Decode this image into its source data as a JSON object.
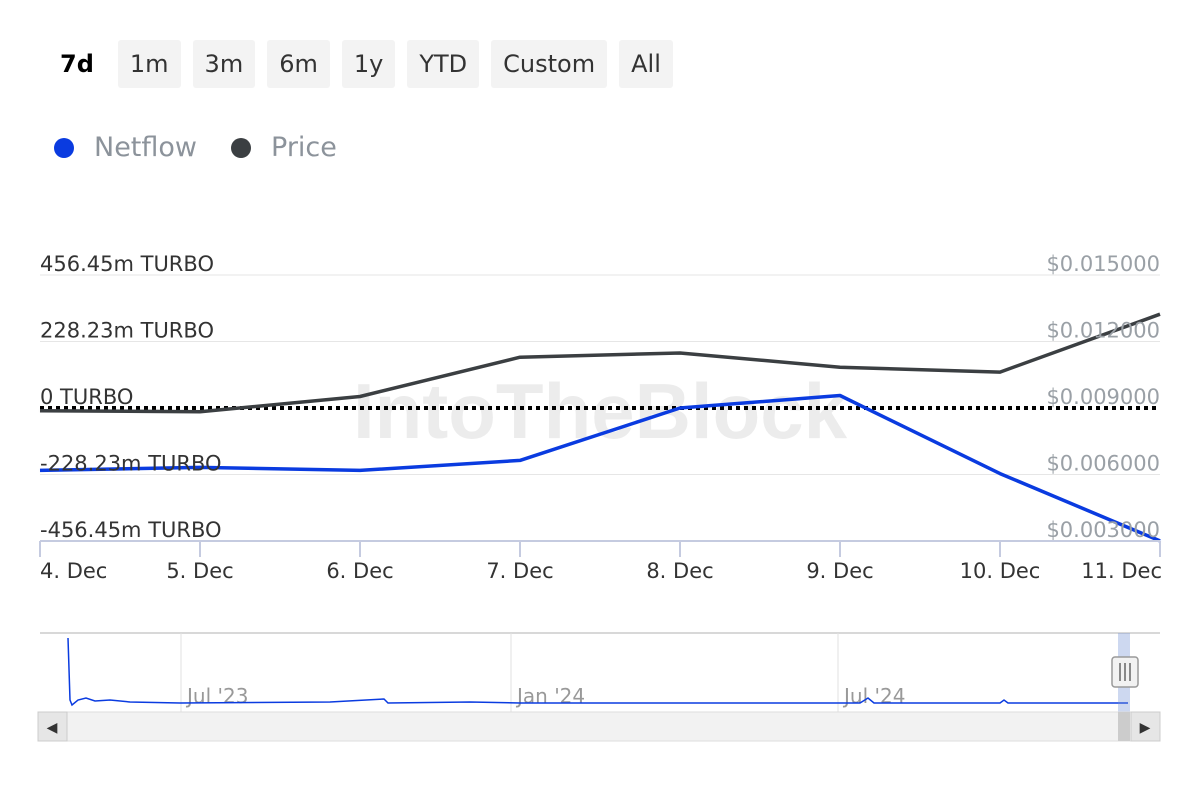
{
  "range_selector": {
    "options": [
      "7d",
      "1m",
      "3m",
      "6m",
      "1y",
      "YTD",
      "Custom",
      "All"
    ],
    "active": "7d"
  },
  "colors": {
    "netflow": "#0a3be0",
    "price": "#3b3f42",
    "zero_line": "#000000",
    "grid": "#e6e6e6",
    "axis_text": "#333333",
    "right_axis_text": "#9aa0a6",
    "watermark": "#ececec"
  },
  "legend": [
    {
      "name": "Netflow",
      "color": "#0a3be0"
    },
    {
      "name": "Price",
      "color": "#3b3f42"
    }
  ],
  "watermark": "IntoTheBlock",
  "chart_data": {
    "type": "line",
    "categories": [
      "4. Dec",
      "5. Dec",
      "6. Dec",
      "7. Dec",
      "8. Dec",
      "9. Dec",
      "10. Dec",
      "11. Dec"
    ],
    "left_axis": {
      "ticks": [
        456.45,
        228.23,
        0,
        -228.23,
        -456.45
      ],
      "tick_labels": [
        "456.45m TURBO",
        "228.23m TURBO",
        "0 TURBO",
        "-228.23m TURBO",
        "-456.45m TURBO"
      ],
      "ylim": [
        -456.45,
        456.45
      ],
      "unit": "m TURBO"
    },
    "right_axis": {
      "ticks": [
        0.015,
        0.012,
        0.009,
        0.006,
        0.003
      ],
      "tick_labels": [
        "$0.015000",
        "$0.012000",
        "$0.009000",
        "$0.006000",
        "$0.003000"
      ],
      "ylim": [
        0.003,
        0.015
      ]
    },
    "series": [
      {
        "name": "Netflow",
        "axis": "left",
        "values": [
          -214,
          -204,
          -214,
          -180,
          0,
          43,
          -225,
          -456
        ]
      },
      {
        "name": "Price",
        "axis": "right",
        "values": [
          0.00888,
          0.00883,
          0.00952,
          0.01129,
          0.01148,
          0.01084,
          0.01062,
          0.01323
        ]
      }
    ],
    "zero_line": {
      "style": "dotted",
      "value": 0
    },
    "grid": true
  },
  "navigator": {
    "labels": [
      "Jul '23",
      "Jan '24",
      "Jul '24"
    ]
  },
  "scrollbar": {
    "left_arrow": "◀",
    "right_arrow": "▶"
  }
}
